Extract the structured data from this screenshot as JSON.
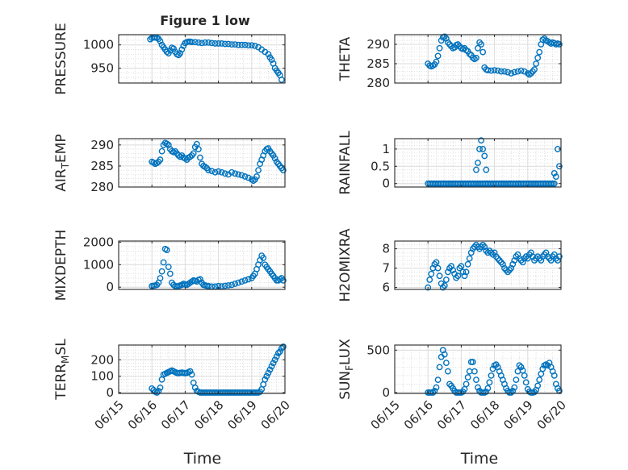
{
  "figure": {
    "title": "Figure 1 low",
    "xlabel": "Time",
    "x_tick_labels": [
      "06/15",
      "06/16",
      "06/17",
      "06/18",
      "06/19",
      "06/20"
    ]
  },
  "chart_data": [
    {
      "type": "scatter",
      "ylabel": "PRESSURE",
      "xlim": [
        0,
        5
      ],
      "ylim": [
        918,
        1022
      ],
      "yticks": [
        950,
        1000
      ],
      "grid": true,
      "marker": "circle-open",
      "color": "#0072BD",
      "x": [
        0.95,
        1.0,
        1.05,
        1.1,
        1.15,
        1.2,
        1.25,
        1.3,
        1.35,
        1.4,
        1.45,
        1.5,
        1.55,
        1.6,
        1.65,
        1.7,
        1.75,
        1.8,
        1.85,
        1.9,
        1.95,
        2.0,
        2.05,
        2.1,
        2.15,
        2.2,
        2.3,
        2.4,
        2.5,
        2.6,
        2.7,
        2.8,
        2.9,
        3.0,
        3.1,
        3.2,
        3.3,
        3.4,
        3.5,
        3.6,
        3.7,
        3.8,
        3.9,
        4.0,
        4.1,
        4.2,
        4.3,
        4.4,
        4.5,
        4.55,
        4.6,
        4.65,
        4.7,
        4.75,
        4.8,
        4.85,
        4.9
      ],
      "y": [
        1012,
        1015,
        1016,
        1016,
        1015,
        1013,
        1008,
        1000,
        995,
        990,
        985,
        982,
        988,
        994,
        992,
        985,
        980,
        978,
        982,
        990,
        998,
        1004,
        1006,
        1007,
        1007,
        1006,
        1006,
        1005,
        1004,
        1005,
        1005,
        1004,
        1003,
        1003,
        1003,
        1002,
        1002,
        1001,
        1001,
        1000,
        1000,
        1000,
        999,
        999,
        998,
        995,
        990,
        985,
        980,
        973,
        968,
        960,
        950,
        945,
        940,
        935,
        925
      ]
    },
    {
      "type": "scatter",
      "ylabel": "THETA",
      "xlim": [
        0,
        5
      ],
      "ylim": [
        280,
        292.5
      ],
      "yticks": [
        280,
        285,
        290
      ],
      "grid": true,
      "marker": "circle-open",
      "color": "#0072BD",
      "x": [
        1.0,
        1.05,
        1.1,
        1.15,
        1.2,
        1.25,
        1.3,
        1.35,
        1.4,
        1.45,
        1.5,
        1.55,
        1.6,
        1.65,
        1.7,
        1.75,
        1.8,
        1.85,
        1.9,
        1.95,
        2.0,
        2.05,
        2.1,
        2.15,
        2.2,
        2.25,
        2.3,
        2.35,
        2.4,
        2.45,
        2.5,
        2.55,
        2.6,
        2.65,
        2.7,
        2.75,
        2.8,
        2.9,
        3.0,
        3.1,
        3.2,
        3.3,
        3.4,
        3.5,
        3.6,
        3.7,
        3.8,
        3.9,
        4.0,
        4.05,
        4.1,
        4.15,
        4.2,
        4.25,
        4.3,
        4.35,
        4.4,
        4.45,
        4.5,
        4.55,
        4.6,
        4.65,
        4.7,
        4.75,
        4.8,
        4.85,
        4.9,
        4.95
      ],
      "y": [
        285,
        284.5,
        284.3,
        284.5,
        284.8,
        285.5,
        287,
        289,
        291,
        291.8,
        292,
        291.5,
        290.5,
        290,
        289.5,
        289,
        289.2,
        289.8,
        290,
        289.5,
        289,
        288.8,
        289,
        288.5,
        288.2,
        287.5,
        287.2,
        286.5,
        286.2,
        286.5,
        289,
        290.5,
        290,
        288,
        284,
        283.5,
        283.3,
        283.2,
        283.3,
        283.2,
        283,
        283,
        282.8,
        282.5,
        282.8,
        283,
        283.2,
        283,
        282.5,
        282.2,
        282.5,
        283,
        283.5,
        285,
        286.5,
        288,
        290,
        291.2,
        291.5,
        291,
        290.8,
        290.5,
        290.2,
        290.5,
        290.3,
        290,
        290.2,
        290
      ]
    },
    {
      "type": "scatter",
      "ylabel": "AIR_TEMP",
      "xlim": [
        0,
        5
      ],
      "ylim": [
        280,
        291.5
      ],
      "yticks": [
        280,
        285,
        290
      ],
      "grid": true,
      "marker": "circle-open",
      "color": "#0072BD",
      "x": [
        1.0,
        1.05,
        1.1,
        1.15,
        1.2,
        1.25,
        1.3,
        1.35,
        1.4,
        1.45,
        1.5,
        1.55,
        1.6,
        1.65,
        1.7,
        1.75,
        1.8,
        1.85,
        1.9,
        1.95,
        2.0,
        2.05,
        2.1,
        2.15,
        2.2,
        2.25,
        2.3,
        2.35,
        2.4,
        2.45,
        2.5,
        2.55,
        2.6,
        2.65,
        2.7,
        2.8,
        2.9,
        3.0,
        3.1,
        3.2,
        3.3,
        3.4,
        3.5,
        3.6,
        3.7,
        3.8,
        3.9,
        4.0,
        4.05,
        4.1,
        4.15,
        4.2,
        4.25,
        4.3,
        4.35,
        4.4,
        4.45,
        4.5,
        4.55,
        4.6,
        4.65,
        4.7,
        4.75,
        4.8,
        4.85,
        4.9,
        4.95
      ],
      "y": [
        286,
        285.8,
        285.5,
        285.7,
        286,
        286.5,
        288.5,
        290,
        290.5,
        290.3,
        290,
        289,
        288.5,
        288.3,
        288.5,
        288,
        287.5,
        287.2,
        287.5,
        287,
        286.8,
        286.5,
        287,
        287.2,
        287.5,
        288,
        289.5,
        290.2,
        289,
        287,
        285.5,
        285,
        284.8,
        284.5,
        284,
        283.8,
        283.5,
        283.7,
        283.5,
        283.2,
        283,
        283.5,
        283.2,
        283,
        282.8,
        282.5,
        282.2,
        281.8,
        281.5,
        281.8,
        282.5,
        284,
        285.5,
        286.5,
        287.5,
        288.5,
        289,
        289.2,
        288.5,
        288,
        287.5,
        286.8,
        286,
        285.5,
        285,
        284.5,
        284
      ]
    },
    {
      "type": "scatter",
      "ylabel": "RAINFALL",
      "xlim": [
        0,
        5
      ],
      "ylim": [
        -0.1,
        1.3
      ],
      "yticks": [
        0,
        0.5,
        1
      ],
      "grid": true,
      "marker": "circle-open",
      "color": "#0072BD",
      "x": [
        1.0,
        1.05,
        1.1,
        1.15,
        1.2,
        1.25,
        1.3,
        1.35,
        1.4,
        1.45,
        1.5,
        1.55,
        1.6,
        1.65,
        1.7,
        1.75,
        1.8,
        1.85,
        1.9,
        1.95,
        2.0,
        2.05,
        2.1,
        2.15,
        2.2,
        2.25,
        2.3,
        2.35,
        2.4,
        2.45,
        2.5,
        2.55,
        2.6,
        2.65,
        2.7,
        2.75,
        2.8,
        2.85,
        2.9,
        2.95,
        3.0,
        3.05,
        3.1,
        3.15,
        3.2,
        3.25,
        3.3,
        3.35,
        3.4,
        3.45,
        3.5,
        3.55,
        3.6,
        3.65,
        3.7,
        3.75,
        3.8,
        3.85,
        3.9,
        3.95,
        4.0,
        4.05,
        4.1,
        4.15,
        4.2,
        4.25,
        4.3,
        4.35,
        4.4,
        4.45,
        4.5,
        4.55,
        4.6,
        4.65,
        4.7,
        4.75,
        4.8,
        2.45,
        2.5,
        2.55,
        2.6,
        2.65,
        2.7,
        2.75,
        4.8,
        4.85,
        4.9,
        4.95
      ],
      "y": [
        0,
        0,
        0,
        0,
        0,
        0,
        0,
        0,
        0,
        0,
        0,
        0,
        0,
        0,
        0,
        0,
        0,
        0,
        0,
        0,
        0,
        0,
        0,
        0,
        0,
        0,
        0,
        0,
        0,
        0,
        0,
        0,
        0,
        0,
        0,
        0,
        0,
        0,
        0,
        0,
        0,
        0,
        0,
        0,
        0,
        0,
        0,
        0,
        0,
        0,
        0,
        0,
        0,
        0,
        0,
        0,
        0,
        0,
        0,
        0,
        0,
        0,
        0,
        0,
        0,
        0,
        0,
        0,
        0,
        0,
        0,
        0,
        0,
        0,
        0,
        0,
        0,
        0.4,
        0.6,
        1.0,
        1.25,
        1.0,
        0.8,
        0.4,
        0.3,
        0.2,
        1.0,
        0.5
      ]
    },
    {
      "type": "scatter",
      "ylabel": "MIXDEPTH",
      "xlim": [
        0,
        5
      ],
      "ylim": [
        -100,
        2050
      ],
      "yticks": [
        0,
        1000,
        2000
      ],
      "grid": true,
      "marker": "circle-open",
      "color": "#0072BD",
      "x": [
        1.0,
        1.05,
        1.1,
        1.15,
        1.2,
        1.25,
        1.3,
        1.35,
        1.4,
        1.45,
        1.5,
        1.55,
        1.6,
        1.65,
        1.7,
        1.75,
        1.8,
        1.85,
        1.9,
        1.95,
        2.0,
        2.05,
        2.1,
        2.15,
        2.2,
        2.25,
        2.3,
        2.35,
        2.4,
        2.45,
        2.5,
        2.55,
        2.6,
        2.65,
        2.7,
        2.8,
        2.9,
        3.0,
        3.1,
        3.2,
        3.3,
        3.4,
        3.5,
        3.6,
        3.7,
        3.8,
        3.9,
        4.0,
        4.05,
        4.1,
        4.15,
        4.2,
        4.25,
        4.3,
        4.35,
        4.4,
        4.45,
        4.5,
        4.55,
        4.6,
        4.65,
        4.7,
        4.75,
        4.8,
        4.85,
        4.9,
        4.95
      ],
      "y": [
        50,
        60,
        80,
        100,
        200,
        400,
        700,
        1100,
        1700,
        1650,
        900,
        600,
        200,
        100,
        50,
        30,
        50,
        80,
        100,
        150,
        120,
        100,
        150,
        200,
        250,
        300,
        280,
        250,
        320,
        350,
        200,
        100,
        80,
        60,
        50,
        30,
        30,
        50,
        40,
        60,
        80,
        100,
        150,
        200,
        250,
        300,
        350,
        400,
        500,
        600,
        800,
        1000,
        1200,
        1400,
        1300,
        1000,
        900,
        800,
        700,
        600,
        500,
        400,
        300,
        300,
        350,
        400,
        300
      ]
    },
    {
      "type": "scatter",
      "ylabel": "H2OMIXRA",
      "xlim": [
        0,
        5
      ],
      "ylim": [
        5.9,
        8.4
      ],
      "yticks": [
        6,
        7,
        8
      ],
      "grid": true,
      "marker": "circle-open",
      "color": "#0072BD",
      "x": [
        1.0,
        1.05,
        1.1,
        1.15,
        1.2,
        1.25,
        1.3,
        1.35,
        1.4,
        1.45,
        1.5,
        1.55,
        1.6,
        1.65,
        1.7,
        1.75,
        1.8,
        1.85,
        1.9,
        1.95,
        2.0,
        2.05,
        2.1,
        2.15,
        2.2,
        2.25,
        2.3,
        2.35,
        2.4,
        2.45,
        2.5,
        2.55,
        2.6,
        2.65,
        2.7,
        2.75,
        2.8,
        2.85,
        2.9,
        2.95,
        3.0,
        3.05,
        3.1,
        3.15,
        3.2,
        3.25,
        3.3,
        3.35,
        3.4,
        3.45,
        3.5,
        3.55,
        3.6,
        3.65,
        3.7,
        3.75,
        3.8,
        3.85,
        3.9,
        3.95,
        4.0,
        4.05,
        4.1,
        4.15,
        4.2,
        4.25,
        4.3,
        4.35,
        4.4,
        4.45,
        4.5,
        4.55,
        4.6,
        4.65,
        4.7,
        4.75,
        4.8,
        4.85,
        4.9,
        4.95
      ],
      "y": [
        6.0,
        6.4,
        6.7,
        7.0,
        7.2,
        7.3,
        7.0,
        6.6,
        6.2,
        6.0,
        6.1,
        6.4,
        6.8,
        7.0,
        7.1,
        6.9,
        6.7,
        6.5,
        6.6,
        7.0,
        7.1,
        6.8,
        6.6,
        6.8,
        7.2,
        7.5,
        7.8,
        8.0,
        8.1,
        8.2,
        8.1,
        8.0,
        8.1,
        8.2,
        8.1,
        7.9,
        7.8,
        7.9,
        7.8,
        7.7,
        7.8,
        7.6,
        7.5,
        7.4,
        7.3,
        7.2,
        7.0,
        6.9,
        6.8,
        6.9,
        7.0,
        7.2,
        7.4,
        7.6,
        7.7,
        7.5,
        7.4,
        7.3,
        7.5,
        7.6,
        7.5,
        7.7,
        7.8,
        7.6,
        7.4,
        7.5,
        7.6,
        7.5,
        7.4,
        7.6,
        7.7,
        7.8,
        7.6,
        7.5,
        7.4,
        7.6,
        7.7,
        7.5,
        7.4,
        7.6
      ]
    },
    {
      "type": "scatter",
      "ylabel": "TERR_MSL",
      "xlim": [
        0,
        5
      ],
      "ylim": [
        -5,
        290
      ],
      "yticks": [
        0,
        100,
        200
      ],
      "grid": true,
      "marker": "circle-open",
      "color": "#0072BD",
      "x": [
        1.0,
        1.05,
        1.1,
        1.15,
        1.2,
        1.25,
        1.3,
        1.35,
        1.4,
        1.45,
        1.5,
        1.55,
        1.6,
        1.65,
        1.7,
        1.75,
        1.8,
        1.85,
        1.9,
        1.95,
        2.0,
        2.05,
        2.1,
        2.15,
        2.2,
        2.25,
        2.3,
        2.35,
        2.4,
        2.45,
        2.5,
        2.55,
        2.6,
        2.65,
        2.7,
        2.75,
        2.8,
        2.85,
        2.9,
        2.95,
        3.0,
        3.05,
        3.1,
        3.15,
        3.2,
        3.25,
        3.3,
        3.35,
        3.4,
        3.45,
        3.5,
        3.55,
        3.6,
        3.65,
        3.7,
        3.75,
        3.8,
        3.85,
        3.9,
        3.95,
        4.0,
        4.05,
        4.1,
        4.15,
        4.2,
        4.25,
        4.3,
        4.35,
        4.4,
        4.45,
        4.5,
        4.55,
        4.6,
        4.65,
        4.7,
        4.75,
        4.8,
        4.85,
        4.9,
        4.95
      ],
      "y": [
        25,
        15,
        5,
        0,
        10,
        30,
        80,
        110,
        115,
        120,
        125,
        130,
        135,
        130,
        125,
        120,
        118,
        120,
        122,
        120,
        118,
        120,
        125,
        130,
        110,
        60,
        30,
        10,
        5,
        0,
        0,
        0,
        0,
        0,
        0,
        0,
        0,
        0,
        0,
        0,
        0,
        0,
        0,
        0,
        0,
        0,
        0,
        0,
        0,
        0,
        0,
        0,
        0,
        0,
        0,
        0,
        0,
        0,
        0,
        0,
        0,
        0,
        0,
        0,
        0,
        5,
        20,
        50,
        80,
        100,
        120,
        140,
        160,
        180,
        200,
        220,
        240,
        250,
        270,
        280
      ]
    },
    {
      "type": "scatter",
      "ylabel": "SUN_FLUX",
      "xlim": [
        0,
        5
      ],
      "ylim": [
        -10,
        560
      ],
      "yticks": [
        0,
        500
      ],
      "grid": true,
      "marker": "circle-open",
      "color": "#0072BD",
      "x": [
        1.0,
        1.05,
        1.1,
        1.15,
        1.2,
        1.25,
        1.3,
        1.35,
        1.4,
        1.45,
        1.5,
        1.55,
        1.6,
        1.65,
        1.7,
        1.75,
        1.8,
        1.85,
        1.9,
        1.95,
        2.0,
        2.05,
        2.1,
        2.15,
        2.2,
        2.25,
        2.3,
        2.35,
        2.4,
        2.45,
        2.5,
        2.55,
        2.6,
        2.65,
        2.7,
        2.75,
        2.8,
        2.85,
        2.9,
        2.95,
        3.0,
        3.05,
        3.1,
        3.15,
        3.2,
        3.25,
        3.3,
        3.35,
        3.4,
        3.45,
        3.5,
        3.55,
        3.6,
        3.65,
        3.7,
        3.75,
        3.8,
        3.85,
        3.9,
        3.95,
        4.0,
        4.05,
        4.1,
        4.15,
        4.2,
        4.25,
        4.3,
        4.35,
        4.4,
        4.45,
        4.5,
        4.55,
        4.6,
        4.65,
        4.7,
        4.75,
        4.8,
        4.85,
        4.9,
        4.95
      ],
      "y": [
        0,
        0,
        0,
        0,
        20,
        60,
        150,
        300,
        420,
        500,
        450,
        350,
        250,
        100,
        80,
        50,
        20,
        0,
        0,
        0,
        0,
        10,
        40,
        100,
        180,
        250,
        360,
        360,
        250,
        150,
        60,
        20,
        0,
        0,
        0,
        10,
        50,
        120,
        200,
        280,
        320,
        330,
        300,
        250,
        200,
        150,
        100,
        50,
        20,
        0,
        0,
        20,
        60,
        150,
        250,
        320,
        300,
        260,
        200,
        120,
        40,
        10,
        0,
        0,
        5,
        30,
        80,
        150,
        220,
        280,
        320,
        330,
        320,
        350,
        300,
        250,
        200,
        100,
        50,
        20
      ]
    }
  ]
}
